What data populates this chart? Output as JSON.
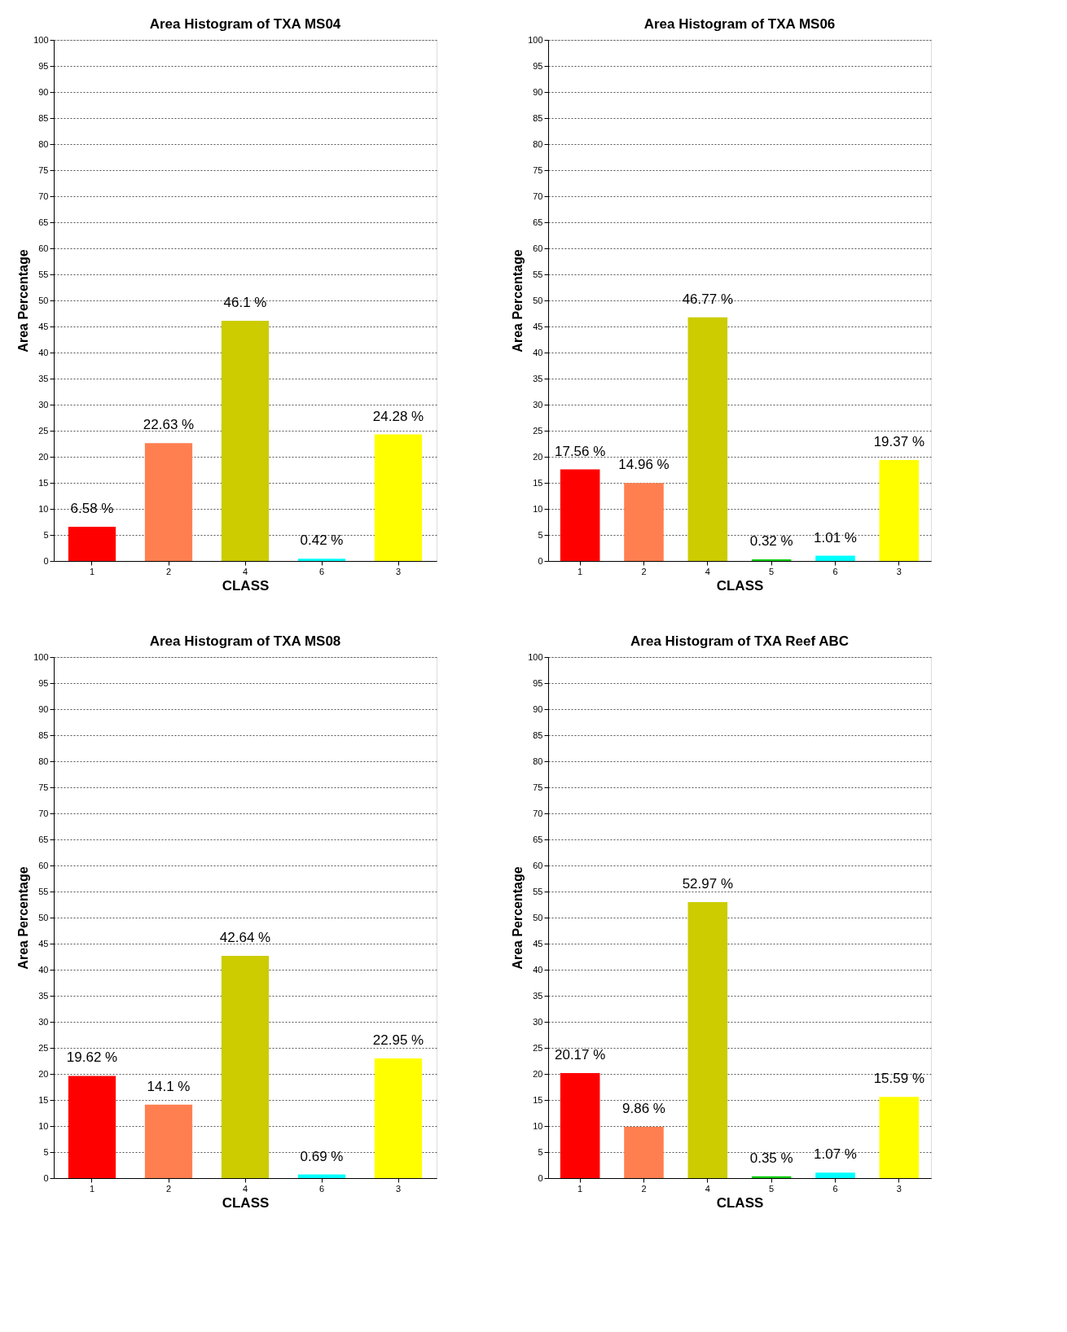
{
  "chart_data": [
    {
      "type": "bar",
      "title": "Area Histogram of TXA MS04",
      "xlabel": "CLASS",
      "ylabel": "Area Percentage",
      "categories": [
        "1",
        "2",
        "4",
        "6",
        "3"
      ],
      "values": [
        6.58,
        22.63,
        46.1,
        0.42,
        24.28
      ],
      "colors": [
        "#ff0000",
        "#ff7f50",
        "#cccc00",
        "#00ffff",
        "#ffff00"
      ],
      "value_labels": [
        "6.58 %",
        "22.63 %",
        "46.1 %",
        "0.42 %",
        "24.28 %"
      ],
      "ylim": [
        0,
        100
      ],
      "yticks": [
        0,
        5,
        10,
        15,
        20,
        25,
        30,
        35,
        40,
        45,
        50,
        55,
        60,
        65,
        70,
        75,
        80,
        85,
        90,
        95,
        100
      ],
      "grid": "y"
    },
    {
      "type": "bar",
      "title": "Area Histogram of TXA MS06",
      "xlabel": "CLASS",
      "ylabel": "Area Percentage",
      "categories": [
        "1",
        "2",
        "4",
        "5",
        "6",
        "3"
      ],
      "values": [
        17.56,
        14.96,
        46.77,
        0.32,
        1.01,
        19.37
      ],
      "colors": [
        "#ff0000",
        "#ff7f50",
        "#cccc00",
        "#00cc00",
        "#00ffff",
        "#ffff00"
      ],
      "value_labels": [
        "17.56 %",
        "14.96 %",
        "46.77 %",
        "0.32 %",
        "1.01 %",
        "19.37 %"
      ],
      "ylim": [
        0,
        100
      ],
      "yticks": [
        0,
        5,
        10,
        15,
        20,
        25,
        30,
        35,
        40,
        45,
        50,
        55,
        60,
        65,
        70,
        75,
        80,
        85,
        90,
        95,
        100
      ],
      "grid": "y"
    },
    {
      "type": "bar",
      "title": "Area Histogram of TXA MS08",
      "xlabel": "CLASS",
      "ylabel": "Area Percentage",
      "categories": [
        "1",
        "2",
        "4",
        "6",
        "3"
      ],
      "values": [
        19.62,
        14.1,
        42.64,
        0.69,
        22.95
      ],
      "colors": [
        "#ff0000",
        "#ff7f50",
        "#cccc00",
        "#00ffff",
        "#ffff00"
      ],
      "value_labels": [
        "19.62 %",
        "14.1 %",
        "42.64 %",
        "0.69 %",
        "22.95 %"
      ],
      "ylim": [
        0,
        100
      ],
      "yticks": [
        0,
        5,
        10,
        15,
        20,
        25,
        30,
        35,
        40,
        45,
        50,
        55,
        60,
        65,
        70,
        75,
        80,
        85,
        90,
        95,
        100
      ],
      "grid": "y"
    },
    {
      "type": "bar",
      "title": "Area Histogram of TXA Reef ABC",
      "xlabel": "CLASS",
      "ylabel": "Area Percentage",
      "categories": [
        "1",
        "2",
        "4",
        "5",
        "6",
        "3"
      ],
      "values": [
        20.17,
        9.86,
        52.97,
        0.35,
        1.07,
        15.59
      ],
      "colors": [
        "#ff0000",
        "#ff7f50",
        "#cccc00",
        "#00cc00",
        "#00ffff",
        "#ffff00"
      ],
      "value_labels": [
        "20.17 %",
        "9.86 %",
        "52.97 %",
        "0.35 %",
        "1.07 %",
        "15.59 %"
      ],
      "ylim": [
        0,
        100
      ],
      "yticks": [
        0,
        5,
        10,
        15,
        20,
        25,
        30,
        35,
        40,
        45,
        50,
        55,
        60,
        65,
        70,
        75,
        80,
        85,
        90,
        95,
        100
      ],
      "grid": "y"
    }
  ]
}
